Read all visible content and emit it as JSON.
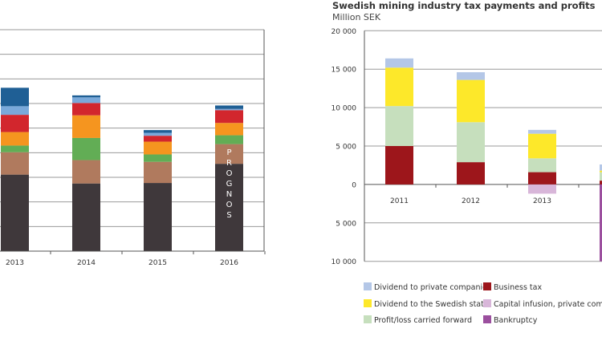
{
  "chart_data": [
    {
      "type": "bar",
      "stacked": true,
      "title": "",
      "categories": [
        "2013",
        "2014",
        "2015",
        "2016"
      ],
      "ylim": [
        0,
        9
      ],
      "grid": true,
      "annotations": [
        {
          "category": "2016",
          "text": "PROGNOS"
        }
      ],
      "series": [
        {
          "color": "#3f383b",
          "values": [
            3.11,
            2.75,
            2.77,
            3.55
          ]
        },
        {
          "color": "#b07a5e",
          "values": [
            0.91,
            0.95,
            0.86,
            0.8
          ]
        },
        {
          "color": "#62ad55",
          "values": [
            0.27,
            0.9,
            0.3,
            0.36
          ]
        },
        {
          "color": "#f5951f",
          "values": [
            0.55,
            0.92,
            0.52,
            0.5
          ]
        },
        {
          "color": "#d2262d",
          "values": [
            0.7,
            0.5,
            0.24,
            0.52
          ]
        },
        {
          "color": "#7aa9da",
          "values": [
            0.35,
            0.23,
            0.12,
            0.05
          ]
        },
        {
          "color": "#1f5f95",
          "values": [
            0.75,
            0.08,
            0.11,
            0.14
          ]
        }
      ]
    },
    {
      "type": "bar",
      "stacked": true,
      "title": "Swedish mining industry tax payments and profits",
      "ylabel": "Million SEK",
      "categories": [
        "2011",
        "2012",
        "2013",
        ""
      ],
      "ylim": [
        -10000,
        20000
      ],
      "yticks": [
        20000,
        15000,
        10000,
        5000,
        0,
        -5000,
        -10000
      ],
      "ytick_labels": [
        "20 000",
        "15 000",
        "10 000",
        "5 000",
        "0",
        "5 000",
        "10 000"
      ],
      "grid": true,
      "legend_position": "bottom",
      "series": [
        {
          "name": "Business tax",
          "color": "#9d161b",
          "values": [
            5000,
            2900,
            1600,
            500
          ]
        },
        {
          "name": "Profit/loss carried forward",
          "color": "#c6dfbd",
          "values": [
            5200,
            5200,
            1800,
            1100
          ]
        },
        {
          "name": "Dividend to the Swedish state",
          "color": "#fde82a",
          "values": [
            5000,
            5500,
            3200,
            200
          ]
        },
        {
          "name": "Dividend to private companies",
          "color": "#b4c7e7",
          "values": [
            1200,
            1000,
            500,
            800
          ]
        },
        {
          "name": "Capital infusion, private companies",
          "color": "#d8b6d9",
          "values": [
            0,
            0,
            -1200,
            0
          ]
        },
        {
          "name": "Bankruptcy",
          "color": "#9b4f9e",
          "values": [
            0,
            0,
            0,
            -10000
          ]
        }
      ],
      "legend": [
        {
          "label": "Dividend to private companies",
          "color": "#b4c7e7"
        },
        {
          "label": "Business tax",
          "color": "#9d161b"
        },
        {
          "label": "Dividend to the Swedish state",
          "color": "#fde82a"
        },
        {
          "label": "Capital infusion, private companies",
          "color": "#d8b6d9"
        },
        {
          "label": "Profit/loss carried forward",
          "color": "#c6dfbd"
        },
        {
          "label": "Bankruptcy",
          "color": "#9b4f9e"
        }
      ]
    }
  ]
}
